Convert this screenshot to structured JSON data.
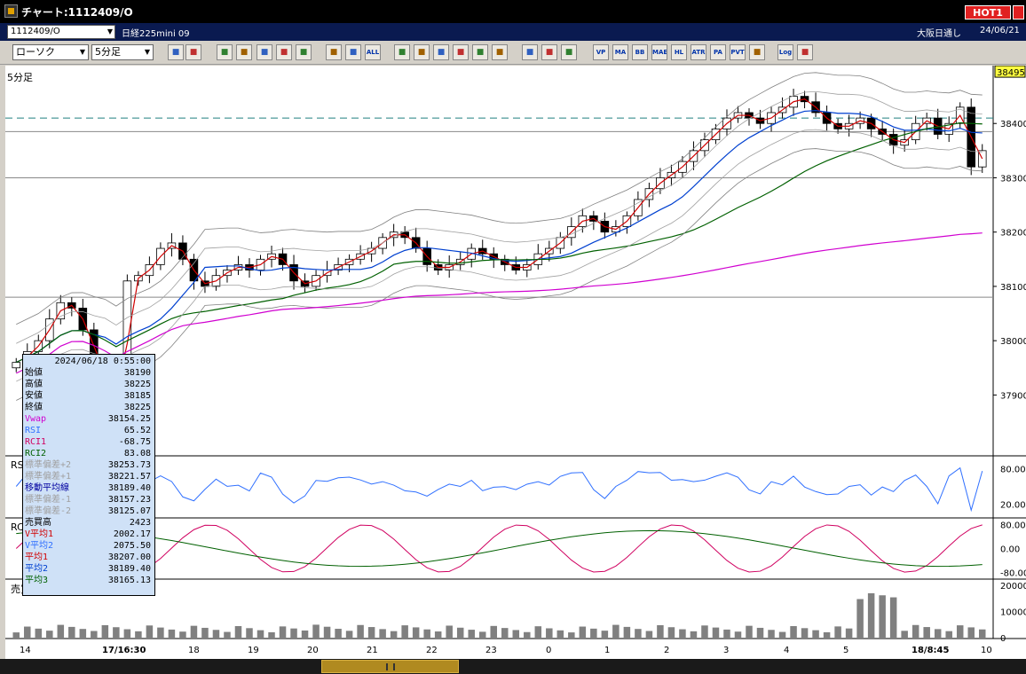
{
  "window": {
    "title": "チャート:1112409/O",
    "hot_label": "HOT1"
  },
  "infobar": {
    "symbol_code": "1112409/O",
    "symbol_name": "日経225mini 09",
    "market": "大阪日通し",
    "date": "24/06/21"
  },
  "toolbar": {
    "chart_type": "ローソク",
    "timeframe": "5分足",
    "buttons": [
      {
        "icon": "zoom-icon",
        "label": ""
      },
      {
        "icon": "crosshair-icon",
        "label": ""
      },
      {
        "icon": "move-icon",
        "label": ""
      },
      {
        "icon": "zoom-in-icon",
        "label": ""
      },
      {
        "icon": "bar-chart-icon",
        "label": ""
      },
      {
        "icon": "compare-icon",
        "label": ""
      },
      {
        "icon": "disabled-icon",
        "label": ""
      },
      {
        "icon": "indicator-icon",
        "label": ""
      },
      {
        "icon": "indicator2-icon",
        "label": ""
      },
      {
        "icon": "all-icon",
        "label": "ALL"
      },
      {
        "icon": "pen-icon",
        "label": ""
      },
      {
        "icon": "line-tool-icon",
        "label": ""
      },
      {
        "icon": "pointer-icon",
        "label": ""
      },
      {
        "icon": "undo-icon",
        "label": ""
      },
      {
        "icon": "note-icon",
        "label": ""
      },
      {
        "icon": "trash-icon",
        "label": ""
      },
      {
        "icon": "settings-icon",
        "label": ""
      },
      {
        "icon": "tools-icon",
        "label": ""
      },
      {
        "icon": "color-icon",
        "label": ""
      },
      {
        "icon": "vp-icon",
        "label": "VP"
      },
      {
        "icon": "ma-icon",
        "label": "MA"
      },
      {
        "icon": "bb-icon",
        "label": "BB"
      },
      {
        "icon": "mae-icon",
        "label": "MAE"
      },
      {
        "icon": "hl-icon",
        "label": "HL"
      },
      {
        "icon": "atr-icon",
        "label": "ATR"
      },
      {
        "icon": "pa-icon",
        "label": "PA"
      },
      {
        "icon": "pvt-icon",
        "label": "PVT"
      },
      {
        "icon": "frame-icon",
        "label": ""
      },
      {
        "icon": "log-icon",
        "label": "Log"
      },
      {
        "icon": "export-icon",
        "label": ""
      }
    ]
  },
  "chart": {
    "price_pane_label": "5分足",
    "rsi_pane_label": "RSI",
    "rci_pane_label": "RCI",
    "volume_pane_label": "売買高",
    "current_price": "38495",
    "price_ticks": [
      "38400",
      "38300",
      "38200",
      "38100",
      "38000",
      "37900"
    ],
    "rsi_ticks": [
      "80.00",
      "20.00"
    ],
    "rci_ticks": [
      "80.00",
      "0.00",
      "-80.00"
    ],
    "volume_ticks": [
      "20000",
      "10000",
      "0"
    ],
    "x_ticks": [
      "14",
      "17/16:30",
      "18",
      "19",
      "20",
      "21",
      "22",
      "23",
      "0",
      "1",
      "2",
      "3",
      "4",
      "5",
      "18/8:45",
      "10"
    ]
  },
  "chart_data": {
    "type": "candlestick",
    "x_range": [
      "17/16:25",
      "18/10:00"
    ],
    "price_ylim": [
      37850,
      38500
    ],
    "close": [
      37960,
      37980,
      38000,
      38040,
      38070,
      38060,
      38020,
      37960,
      37920,
      37880,
      38110,
      38120,
      38140,
      38170,
      38180,
      38150,
      38110,
      38100,
      38120,
      38130,
      38140,
      38130,
      38150,
      38160,
      38140,
      38110,
      38100,
      38120,
      38130,
      38140,
      38150,
      38160,
      38170,
      38190,
      38200,
      38190,
      38170,
      38140,
      38130,
      38140,
      38150,
      38170,
      38160,
      38150,
      38140,
      38130,
      38140,
      38160,
      38170,
      38190,
      38210,
      38230,
      38220,
      38200,
      38210,
      38230,
      38260,
      38280,
      38300,
      38310,
      38330,
      38350,
      38370,
      38390,
      38410,
      38420,
      38410,
      38400,
      38420,
      38430,
      38450,
      38440,
      38420,
      38400,
      38390,
      38400,
      38410,
      38390,
      38380,
      38360,
      38370,
      38400,
      38410,
      38380,
      38400,
      38430,
      38320,
      38350
    ],
    "annotation_lines": [
      38410,
      38385,
      38300,
      38080
    ],
    "ma1_label": "平均1",
    "ma2_label": "平均2",
    "ma3_label": "平均3",
    "volume_max": 22000
  },
  "datapanel": {
    "datetime": "2024/06/18 0:55:00",
    "rows": [
      {
        "label": "始値",
        "value": "38190",
        "color": "#000000"
      },
      {
        "label": "高値",
        "value": "38225",
        "color": "#000000"
      },
      {
        "label": "安値",
        "value": "38185",
        "color": "#000000"
      },
      {
        "label": "終値",
        "value": "38225",
        "color": "#000000"
      },
      {
        "label": "Vwap",
        "value": "38154.25",
        "color": "#d000d0"
      },
      {
        "label": "RSI",
        "value": "65.52",
        "color": "#3070ff"
      },
      {
        "label": "RCI1",
        "value": "-68.75",
        "color": "#d00060"
      },
      {
        "label": "RCI2",
        "value": "83.08",
        "color": "#006000"
      },
      {
        "label": "標準偏差+2",
        "value": "38253.73",
        "color": "#a0a0a0"
      },
      {
        "label": "標準偏差+1",
        "value": "38221.57",
        "color": "#a0a0a0"
      },
      {
        "label": "移動平均線",
        "value": "38189.40",
        "color": "#0000a0"
      },
      {
        "label": "標準偏差-1",
        "value": "38157.23",
        "color": "#a0a0a0"
      },
      {
        "label": "標準偏差-2",
        "value": "38125.07",
        "color": "#a0a0a0"
      },
      {
        "label": "売買高",
        "value": "2423",
        "color": "#000000"
      },
      {
        "label": "V平均1",
        "value": "2002.17",
        "color": "#d00000"
      },
      {
        "label": "V平均2",
        "value": "2075.50",
        "color": "#3070ff"
      },
      {
        "label": "平均1",
        "value": "38207.00",
        "color": "#d00000"
      },
      {
        "label": "平均2",
        "value": "38189.40",
        "color": "#0040d0"
      },
      {
        "label": "平均3",
        "value": "38165.13",
        "color": "#006000"
      }
    ]
  }
}
